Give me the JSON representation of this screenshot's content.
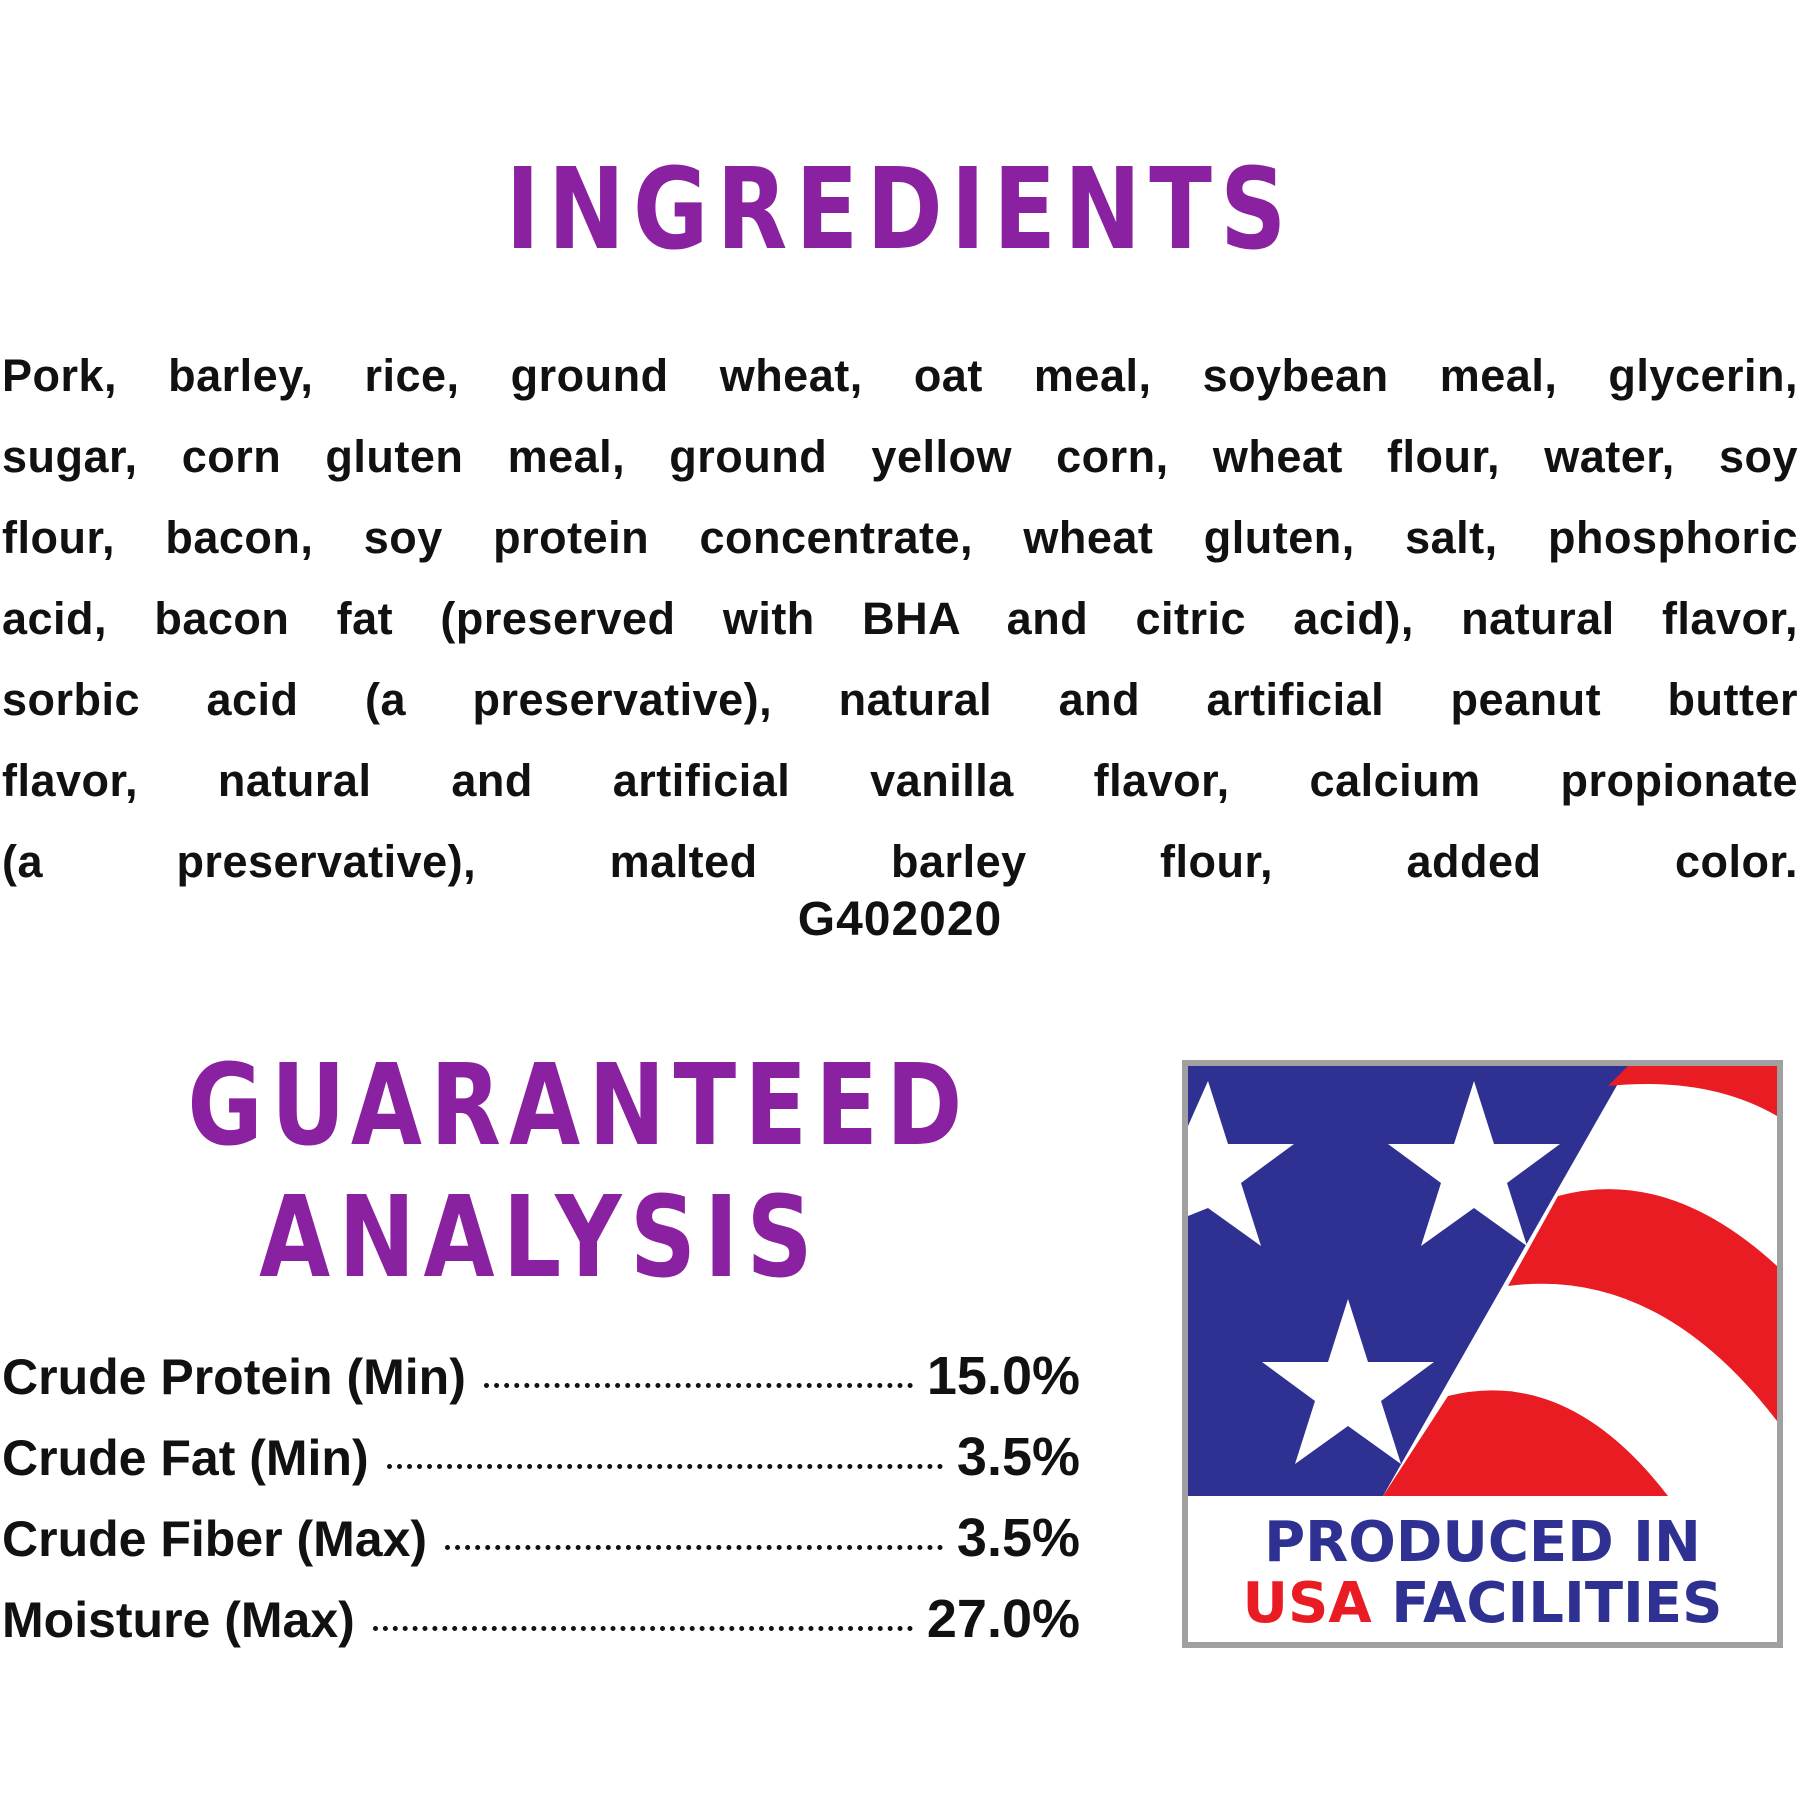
{
  "ingredients": {
    "title": "INGREDIENTS",
    "lines": [
      "Pork, barley, rice, ground wheat, oat meal, soybean meal, glycerin,",
      "sugar, corn gluten meal, ground yellow corn, wheat flour, water, soy",
      "flour, bacon, soy protein concentrate, wheat gluten, salt, phosphoric",
      "acid, bacon fat (preserved with BHA and citric acid), natural flavor,",
      "sorbic acid (a preservative), natural and artificial peanut butter",
      "flavor, natural and artificial vanilla flavor, calcium propionate",
      "(a preservative), malted barley flour, added color."
    ],
    "code": "G402020"
  },
  "analysis": {
    "title_line1": "GUARANTEED",
    "title_line2": "ANALYSIS",
    "rows": [
      {
        "label": "Crude Protein (Min)",
        "value": "15.0%"
      },
      {
        "label": "Crude Fat (Min)",
        "value": "3.5%"
      },
      {
        "label": "Crude Fiber (Max)",
        "value": "3.5%"
      },
      {
        "label": "Moisture (Max)",
        "value": "27.0%"
      }
    ]
  },
  "badge": {
    "line1": "PRODUCED IN",
    "line2_highlight": "USA",
    "line2_rest": "FACILITIES",
    "colors": {
      "blue": "#2e3192",
      "red": "#e91c24",
      "border": "#a0a0a0"
    }
  },
  "colors": {
    "title": "#8a21a0",
    "text": "#111111"
  }
}
